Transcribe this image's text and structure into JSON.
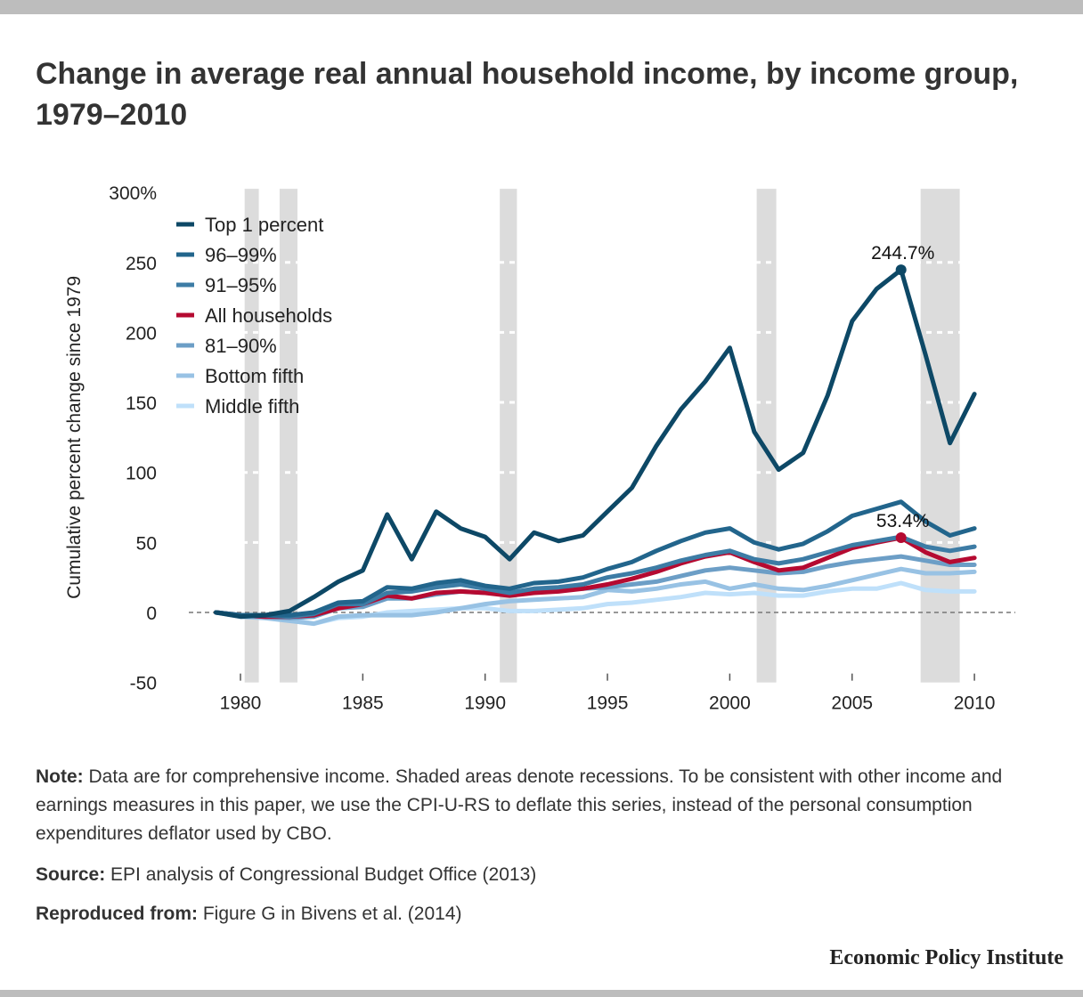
{
  "title": "Change in average real annual household income, by income group, 1979–2010",
  "note_label": "Note:",
  "note_text": "Data are for comprehensive income. Shaded areas denote recessions. To be consistent with other income and earnings measures in this paper, we use the CPI-U-RS to deflate this series, instead of the personal consumption expenditures deflator used by CBO.",
  "source_label": "Source:",
  "source_text": "EPI analysis of Congressional Budget Office (2013)",
  "reproduced_label": "Reproduced from:",
  "reproduced_text": "Figure G in Bivens et al. (2014)",
  "logo": "Economic Policy Institute",
  "chart_data": {
    "type": "line",
    "ylabel": "Cumulative percent change since 1979",
    "xlabel": "",
    "ylim": [
      -50,
      300
    ],
    "xlim": [
      1979,
      2010
    ],
    "yticks": [
      -50,
      0,
      50,
      100,
      150,
      200,
      250,
      300
    ],
    "ytick_labels": [
      "-50",
      "0",
      "50",
      "100",
      "150",
      "200",
      "250",
      "300%"
    ],
    "xticks": [
      1980,
      1985,
      1990,
      1995,
      2000,
      2005,
      2010
    ],
    "xtick_labels": [
      "1980",
      "1985",
      "1990",
      "1995",
      "2000",
      "2005",
      "2010"
    ],
    "legend_position": "top-left",
    "recessions": [
      [
        1980.17,
        1980.75
      ],
      [
        1981.6,
        1982.33
      ],
      [
        1990.6,
        1991.3
      ],
      [
        2001.1,
        2001.9
      ],
      [
        2007.8,
        2009.4
      ]
    ],
    "x": [
      1979,
      1980,
      1981,
      1982,
      1983,
      1984,
      1985,
      1986,
      1987,
      1988,
      1989,
      1990,
      1991,
      1992,
      1993,
      1994,
      1995,
      1996,
      1997,
      1998,
      1999,
      2000,
      2001,
      2002,
      2003,
      2004,
      2005,
      2006,
      2007,
      2008,
      2009,
      2010
    ],
    "series": [
      {
        "name": "Top 1 percent",
        "color": "#0d4866",
        "values": [
          0,
          -3,
          -2,
          1,
          11,
          22,
          30,
          70,
          38,
          72,
          60,
          54,
          38,
          57,
          51,
          55,
          72,
          89,
          119,
          145,
          165,
          189,
          129,
          102,
          114,
          155,
          208,
          231,
          244.7,
          184,
          121,
          156
        ]
      },
      {
        "name": "96–99%",
        "color": "#22658c",
        "values": [
          0,
          -2,
          -2,
          -2,
          0,
          7,
          8,
          18,
          17,
          21,
          23,
          19,
          17,
          21,
          22,
          25,
          31,
          36,
          44,
          51,
          57,
          60,
          50,
          45,
          49,
          58,
          69,
          74,
          79,
          65,
          55,
          60
        ]
      },
      {
        "name": "91–95%",
        "color": "#3d7ca5",
        "values": [
          0,
          -2,
          -2,
          -3,
          -1,
          6,
          6,
          14,
          15,
          18,
          20,
          17,
          14,
          17,
          18,
          20,
          25,
          28,
          32,
          37,
          41,
          44,
          38,
          35,
          38,
          43,
          48,
          51,
          54,
          47,
          44,
          47
        ]
      },
      {
        "name": "All households",
        "color": "#b50a31",
        "values": [
          0,
          -2,
          -3,
          -3,
          -2,
          3,
          6,
          12,
          10,
          14,
          15,
          14,
          12,
          14,
          15,
          17,
          20,
          24,
          29,
          35,
          40,
          43,
          36,
          30,
          32,
          39,
          46,
          50,
          53.4,
          43,
          36,
          39
        ]
      },
      {
        "name": "81–90%",
        "color": "#6c9ec6",
        "values": [
          0,
          -2,
          -3,
          -4,
          -3,
          3,
          4,
          10,
          10,
          13,
          15,
          14,
          14,
          15,
          16,
          17,
          18,
          20,
          22,
          26,
          30,
          32,
          30,
          28,
          29,
          33,
          36,
          38,
          40,
          37,
          34,
          34
        ]
      },
      {
        "name": "Bottom fifth",
        "color": "#98c2e4",
        "values": [
          0,
          -3,
          -4,
          -6,
          -8,
          -3,
          -2,
          -2,
          -2,
          0,
          3,
          6,
          8,
          9,
          10,
          11,
          16,
          15,
          17,
          20,
          22,
          17,
          20,
          17,
          16,
          19,
          23,
          27,
          31,
          28,
          28,
          29
        ]
      },
      {
        "name": "Middle fifth",
        "color": "#bfe0fa",
        "values": [
          0,
          -2,
          -3,
          -5,
          -8,
          -4,
          -3,
          0,
          1,
          2,
          3,
          3,
          1,
          1,
          2,
          3,
          6,
          7,
          9,
          11,
          14,
          13,
          14,
          12,
          12,
          15,
          17,
          17,
          21,
          16,
          15,
          15
        ]
      }
    ],
    "annotations": [
      {
        "series": "Top 1 percent",
        "x": 2007,
        "y": 244.7,
        "label": "244.7%"
      },
      {
        "series": "All households",
        "x": 2007,
        "y": 53.4,
        "label": "53.4%"
      }
    ]
  }
}
